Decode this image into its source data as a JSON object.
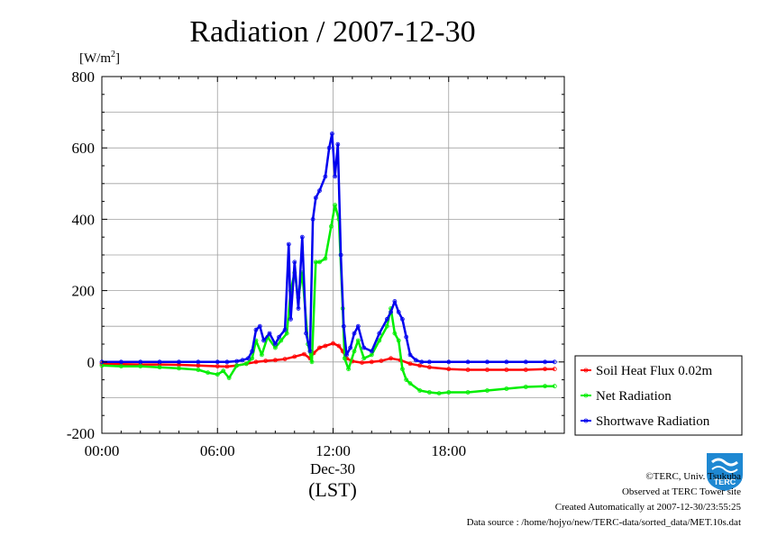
{
  "chart_data": {
    "type": "line",
    "title": "Radiation / 2007-12-30",
    "ylabel": "[W/m",
    "ylabel_sup": "2",
    "ylabel_end": "]",
    "xlabel_date": "Dec-30",
    "xlabel_tz": "(LST)",
    "xlim": [
      0,
      24
    ],
    "ylim": [
      -200,
      800
    ],
    "yticks": [
      -200,
      0,
      200,
      400,
      600,
      800
    ],
    "ytick_labels": [
      "-200",
      "0",
      "200",
      "400",
      "600",
      "800"
    ],
    "xticks": [
      0,
      6,
      12,
      18
    ],
    "xtick_labels": [
      "00:00",
      "06:00",
      "12:00",
      "18:00"
    ],
    "grid": true,
    "legend_position": "right",
    "series": [
      {
        "name": "Soil Heat Flux 0.02m",
        "color": "#ff0000",
        "x": [
          0,
          1,
          2,
          3,
          4,
          5,
          6,
          6.5,
          7,
          7.5,
          8,
          8.5,
          9,
          9.5,
          10,
          10.5,
          10.8,
          11,
          11.3,
          11.6,
          12,
          12.3,
          12.5,
          12.7,
          13,
          13.5,
          14,
          14.5,
          15,
          15.5,
          16,
          16.5,
          17,
          18,
          19,
          20,
          21,
          22,
          23,
          23.5
        ],
        "y": [
          -5,
          -6,
          -7,
          -7,
          -8,
          -10,
          -12,
          -13,
          -10,
          -5,
          0,
          3,
          5,
          8,
          15,
          22,
          10,
          25,
          40,
          45,
          52,
          45,
          30,
          10,
          2,
          -2,
          0,
          3,
          10,
          5,
          -5,
          -10,
          -15,
          -20,
          -22,
          -22,
          -22,
          -22,
          -20,
          -20
        ]
      },
      {
        "name": "Net Radiation",
        "color": "#00ee00",
        "x": [
          0,
          1,
          2,
          3,
          4,
          5,
          5.5,
          6,
          6.3,
          6.6,
          7,
          7.5,
          7.8,
          8,
          8.3,
          8.6,
          9,
          9.3,
          9.6,
          9.8,
          10,
          10.2,
          10.4,
          10.7,
          10.9,
          11.1,
          11.3,
          11.6,
          11.9,
          12.1,
          12.3,
          12.5,
          12.6,
          12.8,
          13.1,
          13.3,
          13.6,
          14,
          14.4,
          14.8,
          15,
          15.2,
          15.4,
          15.6,
          15.8,
          16,
          16.5,
          17,
          17.5,
          18,
          19,
          20,
          21,
          22,
          23,
          23.5
        ],
        "y": [
          -10,
          -12,
          -12,
          -15,
          -18,
          -22,
          -30,
          -35,
          -25,
          -45,
          -10,
          -5,
          10,
          60,
          20,
          70,
          40,
          60,
          80,
          200,
          250,
          180,
          250,
          50,
          0,
          280,
          280,
          290,
          380,
          440,
          400,
          150,
          10,
          -20,
          30,
          60,
          10,
          20,
          60,
          100,
          150,
          80,
          60,
          -20,
          -50,
          -60,
          -80,
          -85,
          -88,
          -85,
          -85,
          -80,
          -75,
          -70,
          -68,
          -68
        ]
      },
      {
        "name": "Shortwave Radiation",
        "color": "#0000ee",
        "x": [
          0,
          1,
          2,
          3,
          4,
          5,
          6,
          6.5,
          7,
          7.3,
          7.6,
          7.8,
          8,
          8.2,
          8.4,
          8.7,
          9,
          9.2,
          9.5,
          9.7,
          9.8,
          10,
          10.2,
          10.4,
          10.6,
          10.8,
          10.95,
          11.1,
          11.3,
          11.6,
          11.8,
          11.95,
          12.1,
          12.25,
          12.4,
          12.55,
          12.7,
          12.9,
          13.1,
          13.3,
          13.6,
          14,
          14.4,
          14.8,
          15,
          15.2,
          15.4,
          15.6,
          15.8,
          16,
          16.3,
          16.6,
          17,
          18,
          19,
          20,
          21,
          22,
          23,
          23.5
        ],
        "y": [
          0,
          0,
          0,
          0,
          0,
          0,
          0,
          0,
          2,
          5,
          10,
          30,
          90,
          100,
          60,
          80,
          50,
          70,
          90,
          330,
          120,
          280,
          150,
          350,
          80,
          30,
          400,
          460,
          480,
          520,
          600,
          640,
          520,
          610,
          300,
          100,
          20,
          40,
          80,
          100,
          40,
          30,
          80,
          120,
          140,
          170,
          140,
          120,
          70,
          20,
          5,
          0,
          0,
          0,
          0,
          0,
          0,
          0,
          0,
          0
        ]
      }
    ]
  },
  "footer": {
    "credit": "©TERC, Univ. Tsukuba",
    "observed": "Observed at TERC Tower site",
    "created": "Created Automatically at 2007-12-30/23:55:25",
    "source": "Data source : /home/hojyo/new/TERC-data/sorted_data/MET.10s.dat"
  },
  "logo": {
    "text": "TERC",
    "color": "#1e88d2"
  }
}
